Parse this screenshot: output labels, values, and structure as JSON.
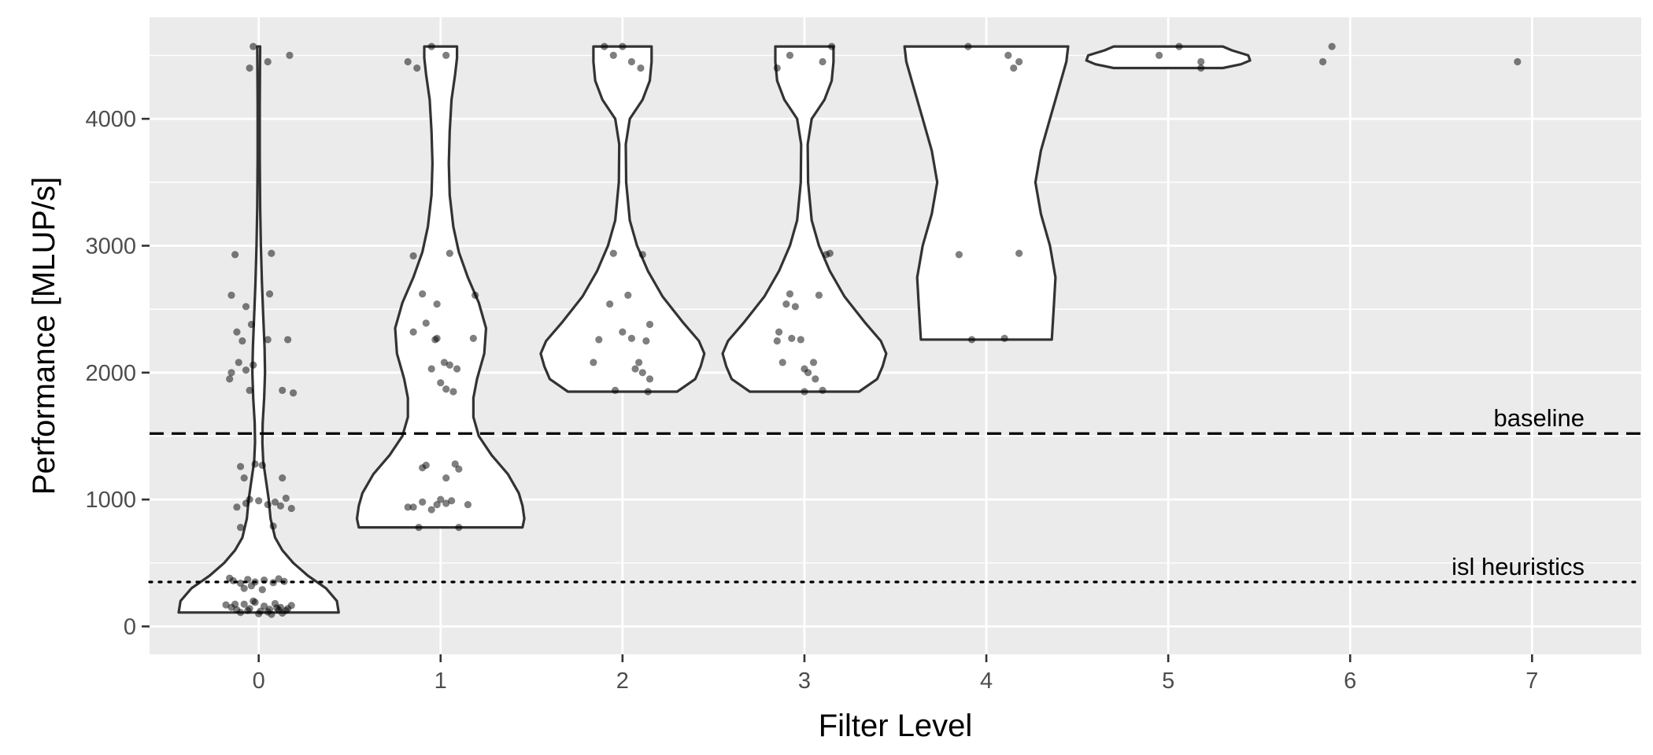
{
  "chart_data": {
    "type": "violin",
    "title": "",
    "xlabel": "Filter Level",
    "ylabel": "Performance [MLUP/s]",
    "categories": [
      "0",
      "1",
      "2",
      "3",
      "4",
      "5",
      "6",
      "7"
    ],
    "xlim": [
      -0.6,
      7.6
    ],
    "ylim": [
      -220,
      4800
    ],
    "yticks": [
      0,
      1000,
      2000,
      3000,
      4000
    ],
    "grid": true,
    "background_color": "#ebebeb",
    "grid_color": "#ffffff",
    "violin_fill": "#ffffff",
    "violin_stroke": "#333333",
    "point_color": "#000000",
    "point_opacity": 0.5,
    "reference_lines": [
      {
        "label": "baseline",
        "value": 1520,
        "style": "dashed"
      },
      {
        "label": "isl heuristics",
        "value": 350,
        "style": "dotted"
      }
    ],
    "violins": [
      {
        "level": 0,
        "profile": [
          [
            110,
            0.44
          ],
          [
            200,
            0.43
          ],
          [
            300,
            0.37
          ],
          [
            400,
            0.27
          ],
          [
            500,
            0.19
          ],
          [
            600,
            0.13
          ],
          [
            700,
            0.09
          ],
          [
            850,
            0.065
          ],
          [
            1000,
            0.055
          ],
          [
            1150,
            0.04
          ],
          [
            1300,
            0.025
          ],
          [
            1450,
            0.02
          ],
          [
            1600,
            0.022
          ],
          [
            1800,
            0.03
          ],
          [
            2000,
            0.035
          ],
          [
            2200,
            0.032
          ],
          [
            2450,
            0.025
          ],
          [
            2700,
            0.018
          ],
          [
            3000,
            0.012
          ],
          [
            3300,
            0.008
          ],
          [
            3700,
            0.006
          ],
          [
            4100,
            0.006
          ],
          [
            4400,
            0.007
          ],
          [
            4570,
            0.008
          ]
        ]
      },
      {
        "level": 1,
        "profile": [
          [
            780,
            0.45
          ],
          [
            850,
            0.46
          ],
          [
            950,
            0.45
          ],
          [
            1050,
            0.43
          ],
          [
            1200,
            0.37
          ],
          [
            1350,
            0.28
          ],
          [
            1500,
            0.21
          ],
          [
            1650,
            0.18
          ],
          [
            1800,
            0.18
          ],
          [
            1950,
            0.2
          ],
          [
            2150,
            0.24
          ],
          [
            2350,
            0.25
          ],
          [
            2550,
            0.21
          ],
          [
            2750,
            0.15
          ],
          [
            2950,
            0.1
          ],
          [
            3150,
            0.07
          ],
          [
            3400,
            0.05
          ],
          [
            3650,
            0.045
          ],
          [
            3900,
            0.05
          ],
          [
            4150,
            0.06
          ],
          [
            4350,
            0.08
          ],
          [
            4480,
            0.09
          ],
          [
            4570,
            0.09
          ]
        ]
      },
      {
        "level": 2,
        "profile": [
          [
            1850,
            0.3
          ],
          [
            1950,
            0.4
          ],
          [
            2050,
            0.43
          ],
          [
            2150,
            0.45
          ],
          [
            2250,
            0.42
          ],
          [
            2400,
            0.33
          ],
          [
            2600,
            0.22
          ],
          [
            2800,
            0.14
          ],
          [
            3000,
            0.08
          ],
          [
            3200,
            0.04
          ],
          [
            3500,
            0.02
          ],
          [
            3800,
            0.018
          ],
          [
            4000,
            0.04
          ],
          [
            4150,
            0.11
          ],
          [
            4300,
            0.15
          ],
          [
            4450,
            0.16
          ],
          [
            4570,
            0.16
          ]
        ]
      },
      {
        "level": 3,
        "profile": [
          [
            1850,
            0.3
          ],
          [
            1950,
            0.4
          ],
          [
            2050,
            0.43
          ],
          [
            2150,
            0.45
          ],
          [
            2250,
            0.42
          ],
          [
            2400,
            0.33
          ],
          [
            2600,
            0.22
          ],
          [
            2800,
            0.14
          ],
          [
            3000,
            0.08
          ],
          [
            3200,
            0.04
          ],
          [
            3500,
            0.02
          ],
          [
            3800,
            0.018
          ],
          [
            4000,
            0.04
          ],
          [
            4150,
            0.11
          ],
          [
            4300,
            0.15
          ],
          [
            4450,
            0.16
          ],
          [
            4570,
            0.16
          ]
        ]
      },
      {
        "level": 4,
        "profile": [
          [
            2260,
            0.36
          ],
          [
            2500,
            0.37
          ],
          [
            2750,
            0.38
          ],
          [
            3000,
            0.35
          ],
          [
            3250,
            0.3
          ],
          [
            3500,
            0.27
          ],
          [
            3750,
            0.3
          ],
          [
            4000,
            0.35
          ],
          [
            4250,
            0.4
          ],
          [
            4450,
            0.44
          ],
          [
            4570,
            0.45
          ]
        ]
      },
      {
        "level": 5,
        "profile": [
          [
            4400,
            0.3
          ],
          [
            4430,
            0.4
          ],
          [
            4460,
            0.45
          ],
          [
            4500,
            0.44
          ],
          [
            4540,
            0.35
          ],
          [
            4570,
            0.3
          ]
        ]
      }
    ],
    "points": [
      {
        "x": -0.18,
        "y": 170
      },
      {
        "x": -0.15,
        "y": 150
      },
      {
        "x": -0.12,
        "y": 130
      },
      {
        "x": -0.08,
        "y": 175
      },
      {
        "x": -0.05,
        "y": 140
      },
      {
        "x": -0.02,
        "y": 190
      },
      {
        "x": 0.01,
        "y": 120
      },
      {
        "x": 0.03,
        "y": 160
      },
      {
        "x": 0.06,
        "y": 135
      },
      {
        "x": 0.09,
        "y": 180
      },
      {
        "x": 0.12,
        "y": 150
      },
      {
        "x": 0.15,
        "y": 125
      },
      {
        "x": 0.18,
        "y": 165
      },
      {
        "x": -0.1,
        "y": 110
      },
      {
        "x": 0.0,
        "y": 100
      },
      {
        "x": 0.05,
        "y": 115
      },
      {
        "x": 0.1,
        "y": 145
      },
      {
        "x": -0.03,
        "y": 200
      },
      {
        "x": 0.13,
        "y": 105
      },
      {
        "x": -0.06,
        "y": 125
      },
      {
        "x": 0.16,
        "y": 140
      },
      {
        "x": 0.07,
        "y": 95
      },
      {
        "x": -0.13,
        "y": 175
      },
      {
        "x": 0.11,
        "y": 130
      },
      {
        "x": -0.14,
        "y": 360
      },
      {
        "x": -0.1,
        "y": 340
      },
      {
        "x": -0.06,
        "y": 370
      },
      {
        "x": -0.02,
        "y": 350
      },
      {
        "x": 0.03,
        "y": 365
      },
      {
        "x": 0.08,
        "y": 345
      },
      {
        "x": 0.14,
        "y": 355
      },
      {
        "x": -0.08,
        "y": 300
      },
      {
        "x": 0.02,
        "y": 290
      },
      {
        "x": -0.16,
        "y": 380
      },
      {
        "x": 0.11,
        "y": 375
      },
      {
        "x": -0.04,
        "y": 320
      },
      {
        "x": -0.12,
        "y": 940
      },
      {
        "x": -0.07,
        "y": 970
      },
      {
        "x": -0.05,
        "y": 1000
      },
      {
        "x": 0.0,
        "y": 990
      },
      {
        "x": 0.05,
        "y": 960
      },
      {
        "x": 0.09,
        "y": 980
      },
      {
        "x": 0.12,
        "y": 950
      },
      {
        "x": 0.15,
        "y": 1010
      },
      {
        "x": -0.1,
        "y": 780
      },
      {
        "x": 0.08,
        "y": 790
      },
      {
        "x": -0.08,
        "y": 1170
      },
      {
        "x": 0.13,
        "y": 1170
      },
      {
        "x": 0.18,
        "y": 930
      },
      {
        "x": -0.02,
        "y": 1280
      },
      {
        "x": 0.02,
        "y": 1270
      },
      {
        "x": -0.1,
        "y": 1260
      },
      {
        "x": -0.15,
        "y": 2000
      },
      {
        "x": -0.11,
        "y": 2080
      },
      {
        "x": -0.07,
        "y": 2020
      },
      {
        "x": -0.03,
        "y": 2060
      },
      {
        "x": -0.16,
        "y": 1950
      },
      {
        "x": -0.05,
        "y": 1860
      },
      {
        "x": 0.13,
        "y": 1860
      },
      {
        "x": 0.19,
        "y": 1840
      },
      {
        "x": -0.09,
        "y": 2250
      },
      {
        "x": -0.04,
        "y": 2380
      },
      {
        "x": 0.05,
        "y": 2260
      },
      {
        "x": 0.16,
        "y": 2260
      },
      {
        "x": -0.12,
        "y": 2320
      },
      {
        "x": -0.07,
        "y": 2520
      },
      {
        "x": 0.06,
        "y": 2620
      },
      {
        "x": -0.15,
        "y": 2610
      },
      {
        "x": -0.13,
        "y": 2930
      },
      {
        "x": 0.07,
        "y": 2940
      },
      {
        "x": -0.05,
        "y": 4400
      },
      {
        "x": -0.03,
        "y": 4570
      },
      {
        "x": 0.05,
        "y": 4450
      },
      {
        "x": 0.17,
        "y": 4500
      },
      {
        "x": 0.85,
        "y": 940
      },
      {
        "x": 0.9,
        "y": 980
      },
      {
        "x": 0.95,
        "y": 920
      },
      {
        "x": 0.98,
        "y": 960
      },
      {
        "x": 1.0,
        "y": 1000
      },
      {
        "x": 1.03,
        "y": 970
      },
      {
        "x": 1.06,
        "y": 990
      },
      {
        "x": 1.15,
        "y": 960
      },
      {
        "x": 0.88,
        "y": 780
      },
      {
        "x": 1.1,
        "y": 780
      },
      {
        "x": 0.9,
        "y": 1250
      },
      {
        "x": 0.92,
        "y": 1270
      },
      {
        "x": 1.03,
        "y": 1170
      },
      {
        "x": 1.08,
        "y": 1280
      },
      {
        "x": 1.1,
        "y": 1240
      },
      {
        "x": 0.82,
        "y": 940
      },
      {
        "x": 1.0,
        "y": 1920
      },
      {
        "x": 1.03,
        "y": 1870
      },
      {
        "x": 1.05,
        "y": 2060
      },
      {
        "x": 1.07,
        "y": 1850
      },
      {
        "x": 1.09,
        "y": 2030
      },
      {
        "x": 0.95,
        "y": 2030
      },
      {
        "x": 0.98,
        "y": 2270
      },
      {
        "x": 1.02,
        "y": 2080
      },
      {
        "x": 0.85,
        "y": 2320
      },
      {
        "x": 0.92,
        "y": 2390
      },
      {
        "x": 0.97,
        "y": 2260
      },
      {
        "x": 0.98,
        "y": 2540
      },
      {
        "x": 1.18,
        "y": 2270
      },
      {
        "x": 1.19,
        "y": 2610
      },
      {
        "x": 0.9,
        "y": 2620
      },
      {
        "x": 0.85,
        "y": 2920
      },
      {
        "x": 1.05,
        "y": 2940
      },
      {
        "x": 0.82,
        "y": 4450
      },
      {
        "x": 0.87,
        "y": 4400
      },
      {
        "x": 0.95,
        "y": 4570
      },
      {
        "x": 1.03,
        "y": 4500
      },
      {
        "x": 1.84,
        "y": 2080
      },
      {
        "x": 1.87,
        "y": 2260
      },
      {
        "x": 1.93,
        "y": 2540
      },
      {
        "x": 1.95,
        "y": 2940
      },
      {
        "x": 1.96,
        "y": 1860
      },
      {
        "x": 2.0,
        "y": 2320
      },
      {
        "x": 2.03,
        "y": 2610
      },
      {
        "x": 2.05,
        "y": 2270
      },
      {
        "x": 2.07,
        "y": 2030
      },
      {
        "x": 2.09,
        "y": 2080
      },
      {
        "x": 2.11,
        "y": 2000
      },
      {
        "x": 2.11,
        "y": 2930
      },
      {
        "x": 2.13,
        "y": 2250
      },
      {
        "x": 2.14,
        "y": 1850
      },
      {
        "x": 2.15,
        "y": 2380
      },
      {
        "x": 2.15,
        "y": 1950
      },
      {
        "x": 1.9,
        "y": 4570
      },
      {
        "x": 1.95,
        "y": 4500
      },
      {
        "x": 2.05,
        "y": 4450
      },
      {
        "x": 2.1,
        "y": 4400
      },
      {
        "x": 2.0,
        "y": 4570
      },
      {
        "x": 2.85,
        "y": 2250
      },
      {
        "x": 2.86,
        "y": 2320
      },
      {
        "x": 2.88,
        "y": 2080
      },
      {
        "x": 2.9,
        "y": 2540
      },
      {
        "x": 2.92,
        "y": 2620
      },
      {
        "x": 2.93,
        "y": 2270
      },
      {
        "x": 2.95,
        "y": 2520
      },
      {
        "x": 2.98,
        "y": 2260
      },
      {
        "x": 3.0,
        "y": 2030
      },
      {
        "x": 3.02,
        "y": 2000
      },
      {
        "x": 3.05,
        "y": 2080
      },
      {
        "x": 3.06,
        "y": 1950
      },
      {
        "x": 3.08,
        "y": 2610
      },
      {
        "x": 3.1,
        "y": 1860
      },
      {
        "x": 3.12,
        "y": 2930
      },
      {
        "x": 3.14,
        "y": 2940
      },
      {
        "x": 3.0,
        "y": 1850
      },
      {
        "x": 2.85,
        "y": 4400
      },
      {
        "x": 2.92,
        "y": 4500
      },
      {
        "x": 3.1,
        "y": 4450
      },
      {
        "x": 3.15,
        "y": 4570
      },
      {
        "x": 3.85,
        "y": 2930
      },
      {
        "x": 3.92,
        "y": 2260
      },
      {
        "x": 4.1,
        "y": 2270
      },
      {
        "x": 4.18,
        "y": 2940
      },
      {
        "x": 3.9,
        "y": 4570
      },
      {
        "x": 4.12,
        "y": 4500
      },
      {
        "x": 4.15,
        "y": 4400
      },
      {
        "x": 4.18,
        "y": 4450
      },
      {
        "x": 4.95,
        "y": 4500
      },
      {
        "x": 5.06,
        "y": 4570
      },
      {
        "x": 5.18,
        "y": 4400
      },
      {
        "x": 5.18,
        "y": 4450
      },
      {
        "x": 5.85,
        "y": 4450
      },
      {
        "x": 5.9,
        "y": 4570
      },
      {
        "x": 6.92,
        "y": 4450
      }
    ]
  }
}
